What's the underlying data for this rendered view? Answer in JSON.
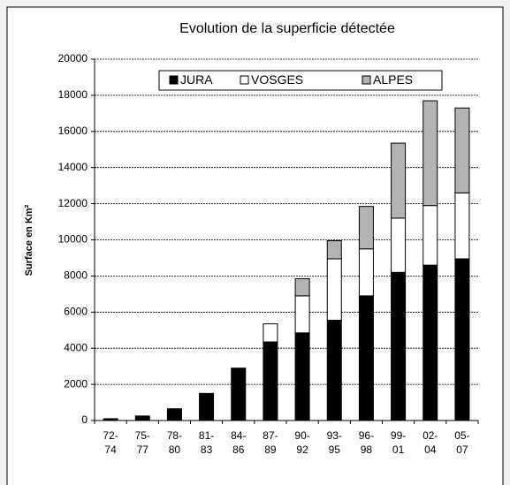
{
  "chart_data": {
    "type": "stacked_bar",
    "title": "Evolution de la superficie détectée",
    "y_label": "Surface en Km²",
    "categories": [
      "72- 74",
      "75- 77",
      "78- 80",
      "81- 83",
      "84- 86",
      "87- 89",
      "90- 92",
      "93- 95",
      "96- 98",
      "99- 01",
      "02- 04",
      "05- 07"
    ],
    "series": [
      {
        "name": "JURA",
        "color": "#000000",
        "values": [
          100,
          250,
          650,
          1500,
          2900,
          4350,
          4850,
          5550,
          6900,
          8200,
          8600,
          8950
        ]
      },
      {
        "name": "VOSGES",
        "color": "#ffffff",
        "values": [
          0,
          0,
          0,
          0,
          0,
          1000,
          2050,
          3400,
          2600,
          3000,
          3300,
          3650
        ]
      },
      {
        "name": "ALPES",
        "color": "#b3b3b3",
        "values": [
          0,
          0,
          0,
          0,
          0,
          0,
          950,
          1000,
          2350,
          4150,
          5800,
          4700
        ]
      }
    ],
    "ylim": [
      0,
      20000
    ],
    "yticks": [
      0,
      2000,
      4000,
      6000,
      8000,
      10000,
      12000,
      14000,
      16000,
      18000,
      20000
    ],
    "grid": true,
    "legend": "top"
  }
}
